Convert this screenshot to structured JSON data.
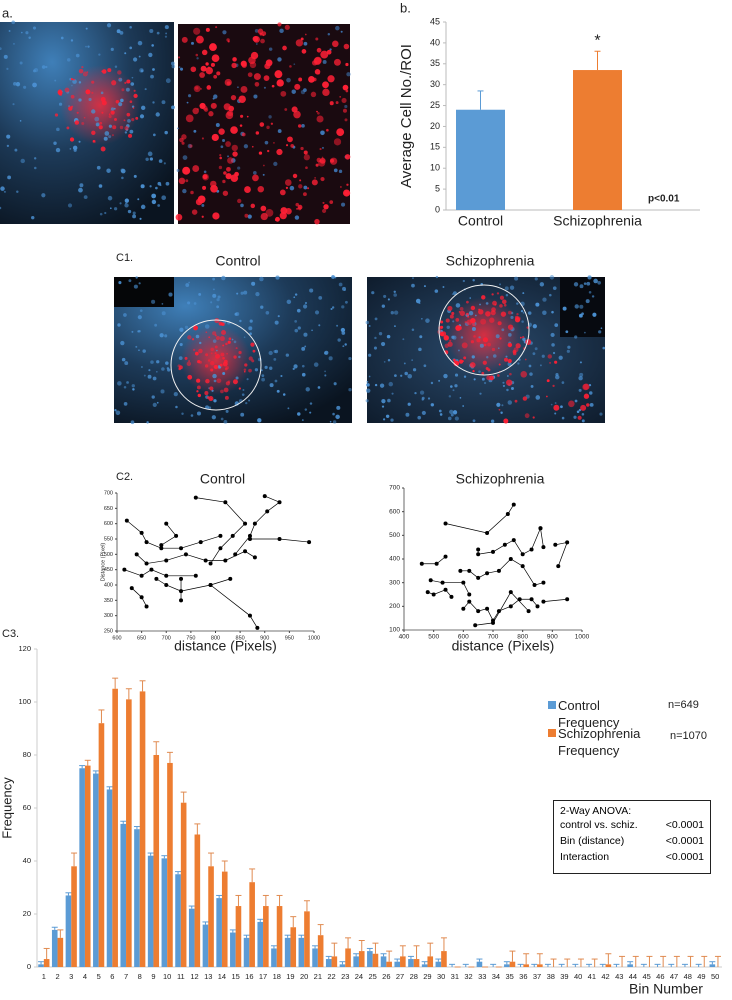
{
  "panel_labels": {
    "a": "a.",
    "b": "b.",
    "c1": "C1.",
    "c2": "C2.",
    "c3": "C3."
  },
  "c1_titles": [
    "Control",
    "Schizophrenia"
  ],
  "chart_data": [
    {
      "type": "bar",
      "y_label": "Average Cell No./ROI",
      "categories": [
        "Control",
        "Schizophrenia"
      ],
      "values": [
        24,
        33.5
      ],
      "errors": [
        4.5,
        4.5
      ],
      "colors": [
        "#5b9bd5",
        "#ed7d31"
      ],
      "ylim": [
        0,
        45
      ],
      "yticks": [
        0,
        5,
        10,
        15,
        20,
        25,
        30,
        35,
        40,
        45
      ],
      "significance_marker": "*",
      "p_value": "p<0.01"
    },
    {
      "type": "line",
      "title": "Control",
      "x_label": "distance (Pixels)",
      "y_label": "Distance (Pixel)",
      "xlim": [
        600,
        1000
      ],
      "xticks": [
        600,
        650,
        700,
        750,
        800,
        850,
        900,
        950,
        1000
      ],
      "ylim": [
        250,
        700
      ],
      "yticks": [
        250,
        300,
        350,
        400,
        450,
        500,
        550,
        600,
        650,
        700
      ],
      "series": [
        {
          "color": "#000000",
          "x": [
            760,
            820,
            860,
            835,
            810,
            790
          ],
          "values": [
            685,
            670,
            600,
            560,
            520,
            470
          ]
        },
        {
          "color": "#000000",
          "x": [
            900,
            930,
            905,
            880,
            870,
            840
          ],
          "values": [
            690,
            670,
            640,
            600,
            560,
            500
          ]
        },
        {
          "color": "#000000",
          "x": [
            620,
            650,
            660,
            690,
            730,
            770,
            810
          ],
          "values": [
            610,
            570,
            540,
            520,
            520,
            540,
            560
          ]
        },
        {
          "color": "#000000",
          "x": [
            640,
            660,
            700,
            740,
            780,
            820,
            860,
            880
          ],
          "values": [
            500,
            470,
            480,
            500,
            480,
            480,
            510,
            490
          ]
        },
        {
          "color": "#000000",
          "x": [
            870,
            930,
            990
          ],
          "values": [
            550,
            550,
            540
          ]
        },
        {
          "color": "#000000",
          "x": [
            700,
            720,
            690
          ],
          "values": [
            600,
            560,
            530
          ]
        },
        {
          "color": "#000000",
          "x": [
            615,
            650,
            670,
            700,
            760
          ],
          "values": [
            450,
            430,
            450,
            430,
            430
          ]
        },
        {
          "color": "#000000",
          "x": [
            630,
            650,
            660
          ],
          "values": [
            390,
            360,
            330
          ]
        },
        {
          "color": "#000000",
          "x": [
            680,
            700,
            730,
            790,
            830
          ],
          "values": [
            420,
            400,
            380,
            400,
            420
          ]
        },
        {
          "color": "#000000",
          "x": [
            730,
            730
          ],
          "values": [
            420,
            350
          ]
        },
        {
          "color": "#000000",
          "x": [
            790,
            870,
            885
          ],
          "values": [
            400,
            300,
            260
          ]
        }
      ]
    },
    {
      "type": "line",
      "title": "Schizophrenia",
      "x_label": "distance (Pixels)",
      "xlim": [
        400,
        1000
      ],
      "xticks": [
        400,
        500,
        600,
        700,
        800,
        900,
        1000
      ],
      "ylim": [
        100,
        700
      ],
      "yticks": [
        100,
        200,
        300,
        400,
        500,
        600,
        700
      ],
      "series": [
        {
          "color": "#000000",
          "x": [
            540,
            680,
            750,
            770
          ],
          "values": [
            550,
            510,
            590,
            630
          ]
        },
        {
          "color": "#000000",
          "x": [
            460,
            510,
            540
          ],
          "values": [
            380,
            380,
            410
          ]
        },
        {
          "color": "#000000",
          "x": [
            490,
            530,
            600,
            620
          ],
          "values": [
            310,
            300,
            300,
            250
          ]
        },
        {
          "color": "#000000",
          "x": [
            480,
            500,
            540,
            560
          ],
          "values": [
            260,
            250,
            270,
            240
          ]
        },
        {
          "color": "#000000",
          "x": [
            600,
            620,
            650,
            680,
            700,
            720,
            760,
            790,
            830,
            850
          ],
          "values": [
            190,
            220,
            180,
            190,
            140,
            180,
            200,
            230,
            230,
            200
          ]
        },
        {
          "color": "#000000",
          "x": [
            650,
            650,
            700,
            740,
            770,
            800,
            830,
            860
          ],
          "values": [
            440,
            420,
            430,
            460,
            480,
            420,
            440,
            530
          ]
        },
        {
          "color": "#000000",
          "x": [
            590,
            620,
            650,
            680,
            720,
            760,
            800,
            840,
            870
          ],
          "values": [
            350,
            350,
            320,
            340,
            350,
            400,
            370,
            290,
            300
          ]
        },
        {
          "color": "#000000",
          "x": [
            910,
            950,
            920
          ],
          "values": [
            460,
            470,
            370
          ]
        },
        {
          "color": "#000000",
          "x": [
            860,
            870
          ],
          "values": [
            530,
            450
          ]
        },
        {
          "color": "#000000",
          "x": [
            870,
            950
          ],
          "values": [
            220,
            230
          ]
        },
        {
          "color": "#000000",
          "x": [
            640,
            700,
            760,
            820
          ],
          "values": [
            120,
            130,
            260,
            180
          ]
        }
      ]
    },
    {
      "type": "bar",
      "x_label": "Bin Number",
      "y_label": "Frequency",
      "categories": [
        "1",
        "2",
        "3",
        "4",
        "5",
        "6",
        "7",
        "8",
        "9",
        "10",
        "11",
        "12",
        "13",
        "14",
        "15",
        "16",
        "17",
        "18",
        "19",
        "20",
        "21",
        "22",
        "23",
        "24",
        "25",
        "26",
        "27",
        "28",
        "29",
        "30",
        "31",
        "32",
        "33",
        "34",
        "35",
        "36",
        "37",
        "38",
        "39",
        "40",
        "41",
        "42",
        "43",
        "44",
        "45",
        "46",
        "47",
        "48",
        "49",
        "50"
      ],
      "ylim": [
        0,
        120
      ],
      "yticks": [
        0,
        20,
        40,
        60,
        80,
        100,
        120
      ],
      "series": [
        {
          "name": "Control Frequency",
          "n": "n=649",
          "color": "#5b9bd5",
          "values": [
            1,
            14,
            27,
            75,
            73,
            67,
            54,
            52,
            42,
            41,
            35,
            22,
            16,
            26,
            13,
            11,
            17,
            7,
            11,
            11,
            7,
            3,
            1,
            4,
            6,
            4,
            2,
            3,
            1,
            2,
            0,
            0,
            2,
            0,
            1,
            0,
            0,
            0,
            0,
            0,
            0,
            0,
            0,
            1,
            0,
            0,
            0,
            0,
            0,
            1
          ],
          "errors": [
            1,
            1,
            1,
            1,
            1,
            1,
            1,
            1,
            1,
            1,
            1,
            1,
            1,
            1,
            1,
            1,
            1,
            1,
            1,
            1,
            1,
            1,
            1,
            1,
            1,
            1,
            1,
            1,
            1,
            1,
            1,
            1,
            1,
            1,
            1,
            1,
            1,
            1,
            1,
            1,
            1,
            1,
            1,
            1,
            1,
            1,
            1,
            1,
            1,
            1
          ]
        },
        {
          "name": "Schizophrenia Frequency",
          "n": "n=1070",
          "color": "#ed7d31",
          "values": [
            3,
            11,
            38,
            76,
            92,
            105,
            101,
            104,
            80,
            77,
            62,
            50,
            38,
            36,
            23,
            32,
            23,
            23,
            15,
            21,
            12,
            4,
            7,
            6,
            5,
            2,
            4,
            3,
            4,
            6,
            0,
            0,
            0,
            0,
            2,
            1,
            1,
            0,
            0,
            0,
            0,
            1,
            0,
            0,
            0,
            0,
            0,
            0,
            0,
            0
          ],
          "errors": [
            4,
            3,
            5,
            2,
            5,
            4,
            4,
            4,
            5,
            4,
            4,
            4,
            5,
            4,
            4,
            5,
            4,
            4,
            4,
            4,
            4,
            5,
            4,
            4,
            4,
            4,
            4,
            5,
            5,
            5,
            0,
            0,
            0,
            0,
            4,
            4,
            4,
            3,
            3,
            3,
            3,
            4,
            4,
            4,
            4,
            4,
            4,
            4,
            4,
            4
          ]
        }
      ],
      "anova": {
        "title": "2-Way ANOVA:",
        "rows": [
          [
            "control vs. schiz.",
            "<0.0001"
          ],
          [
            "Bin (distance)",
            "<0.0001"
          ],
          [
            "Interaction",
            "<0.0001"
          ]
        ]
      }
    }
  ]
}
